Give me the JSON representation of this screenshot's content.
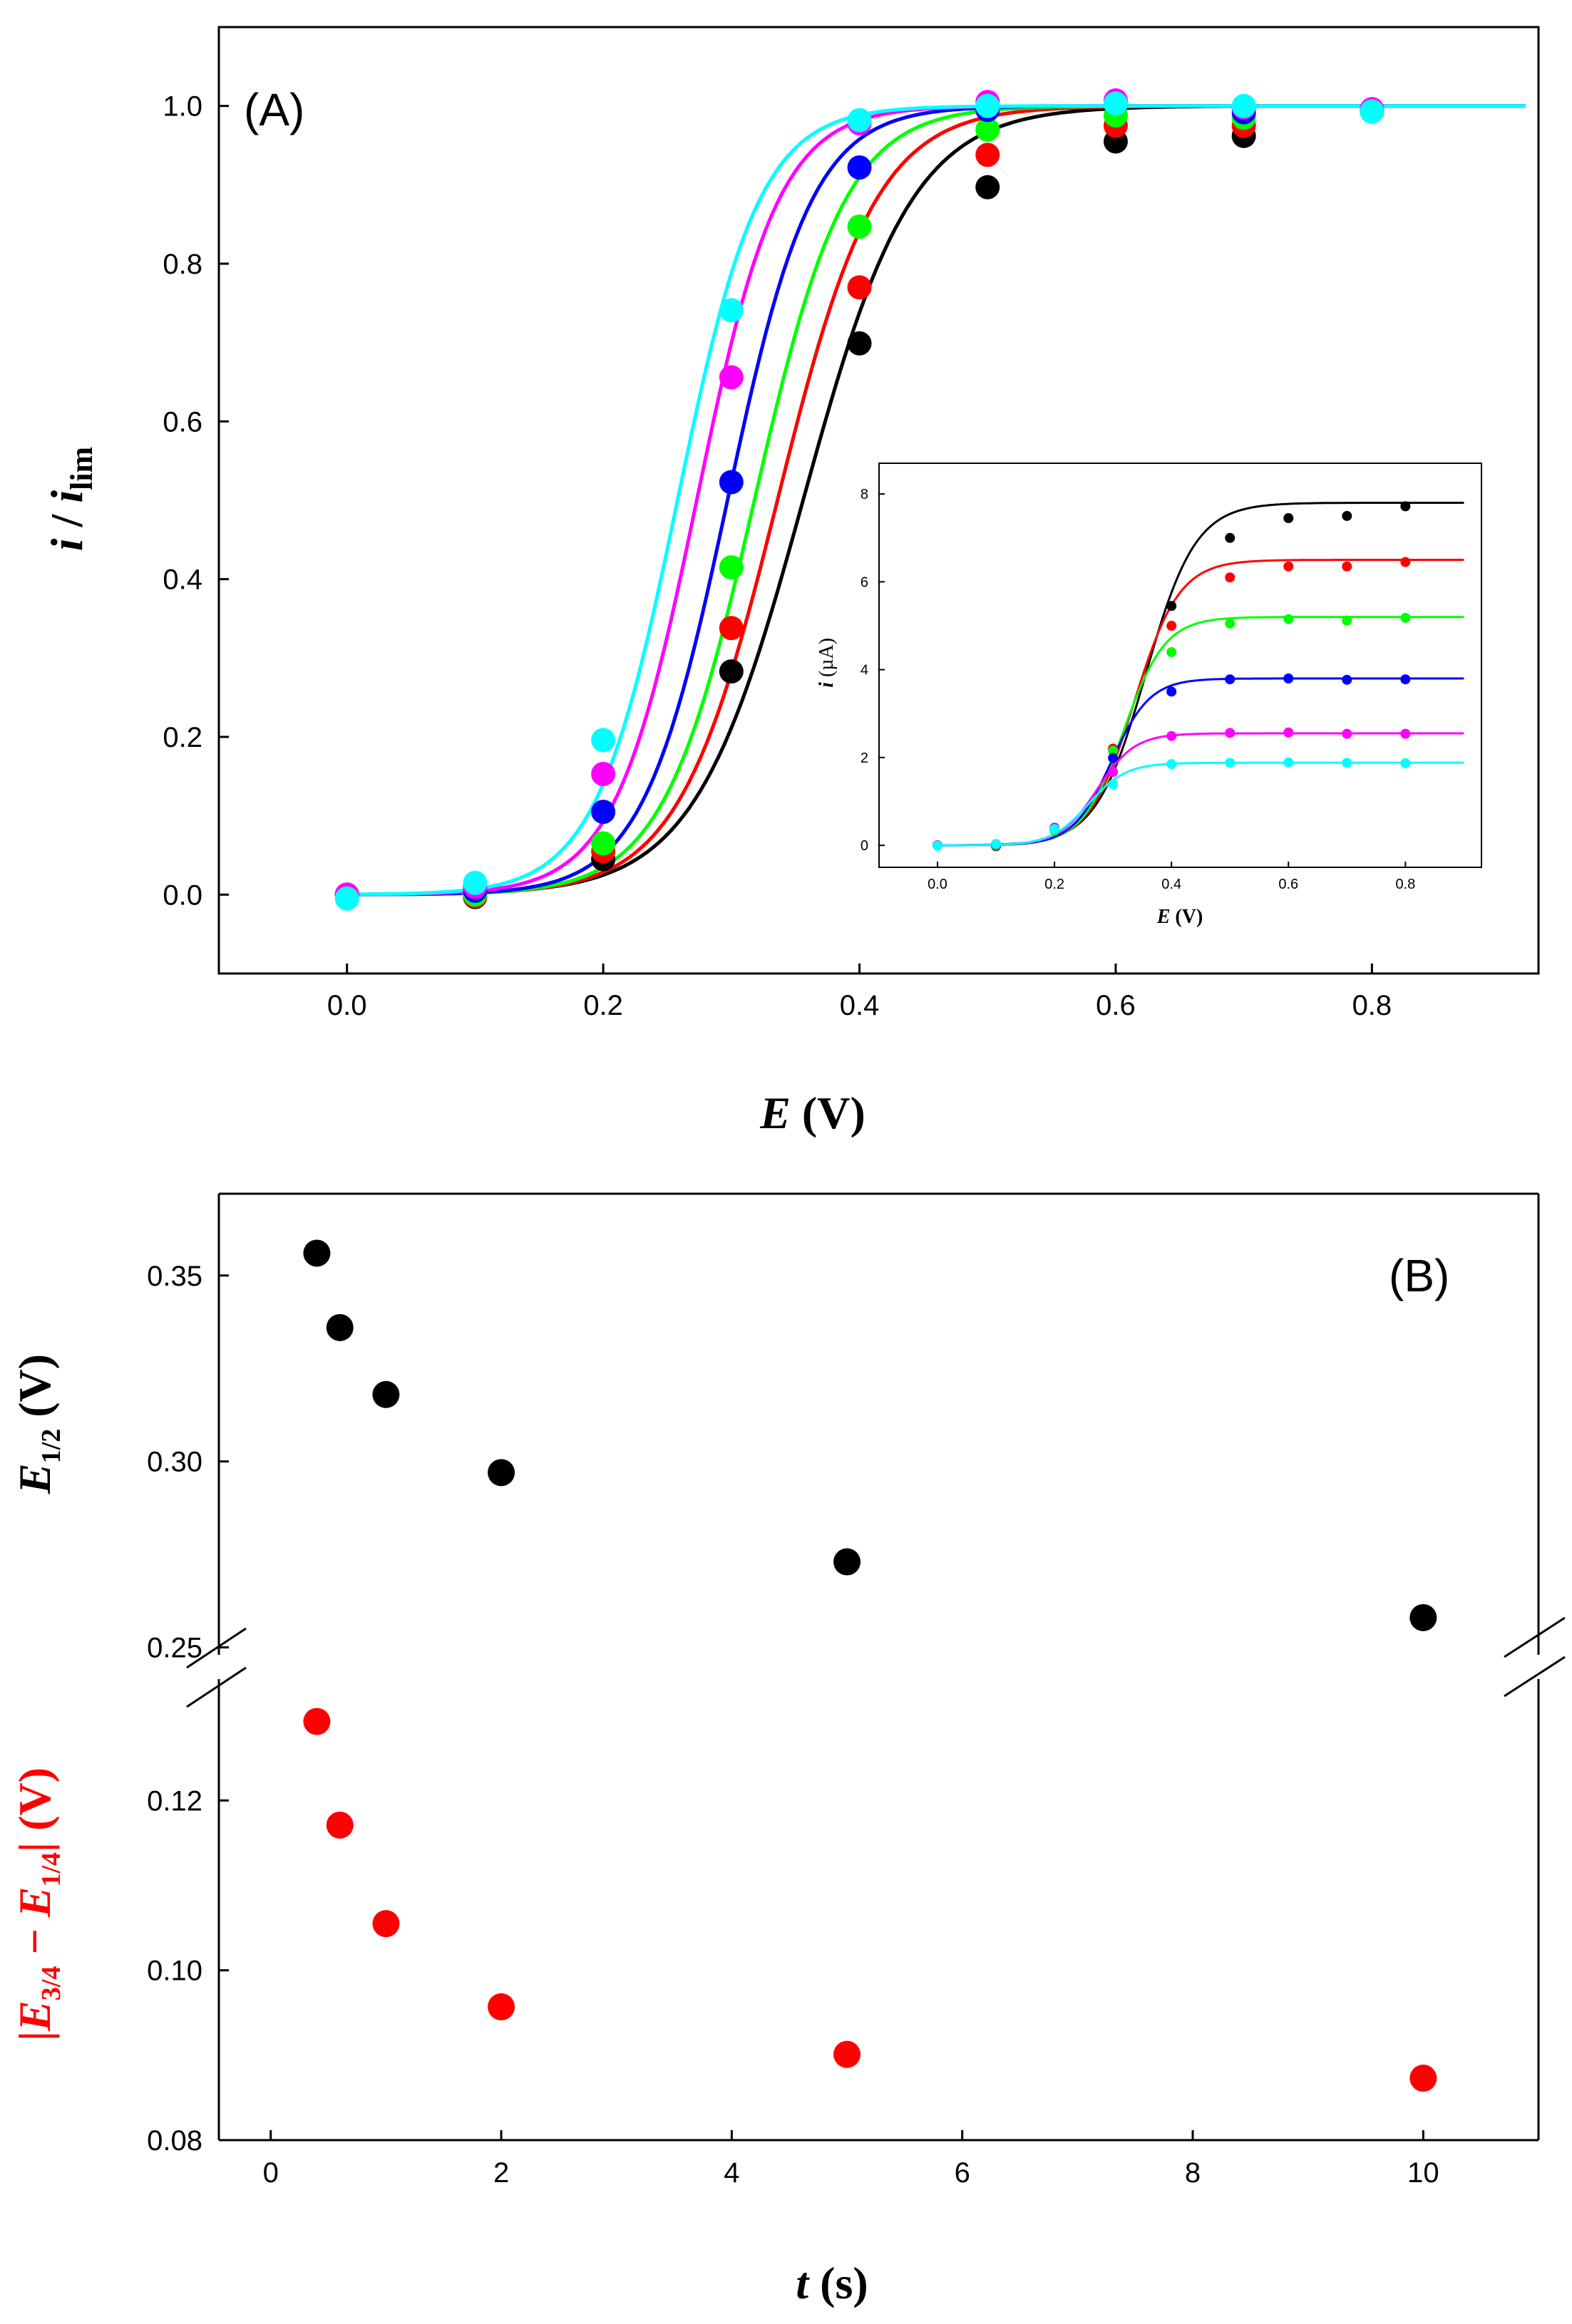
{
  "chart_data": [
    {
      "panel_label": "(A)",
      "type": "line+scatter",
      "xlabel": "E (V)",
      "xlabel_parts": {
        "sym": "E",
        "unit": " (V)"
      },
      "ylabel": "i / i_lim",
      "ylabel_parts": {
        "a": "i",
        "sep": " / ",
        "b": "i",
        "sub": "lim"
      },
      "xlim": [
        -0.1,
        0.93
      ],
      "ylim": [
        -0.1,
        1.1
      ],
      "xticks": [
        0.0,
        0.2,
        0.4,
        0.6,
        0.8
      ],
      "xtick_labels": [
        "0.0",
        "0.2",
        "0.4",
        "0.6",
        "0.8"
      ],
      "yticks": [
        0.0,
        0.2,
        0.4,
        0.6,
        0.8,
        1.0
      ],
      "ytick_labels": [
        "0.0",
        "0.2",
        "0.4",
        "0.6",
        "0.8",
        "1.0"
      ],
      "x": [
        0.0,
        0.1,
        0.2,
        0.3,
        0.4,
        0.5,
        0.6,
        0.7,
        0.8
      ],
      "series": [
        {
          "color": "#000000",
          "e_half": 0.356,
          "slope": 0.0425,
          "values": [
            0.0,
            -0.003,
            0.045,
            0.283,
            0.699,
            0.897,
            0.955,
            0.962,
            0.993
          ]
        },
        {
          "color": "#ff0000",
          "e_half": 0.336,
          "slope": 0.0385,
          "values": [
            0.0,
            -0.002,
            0.055,
            0.338,
            0.77,
            0.938,
            0.975,
            0.975,
            0.994
          ]
        },
        {
          "color": "#00ff00",
          "e_half": 0.318,
          "slope": 0.0355,
          "values": [
            0.0,
            0.0,
            0.065,
            0.415,
            0.847,
            0.97,
            0.988,
            0.985,
            0.995
          ]
        },
        {
          "color": "#0000ff",
          "e_half": 0.297,
          "slope": 0.033,
          "values": [
            0.0,
            0.005,
            0.105,
            0.523,
            0.922,
            0.995,
            1.003,
            0.992,
            0.994
          ]
        },
        {
          "color": "#ff00ff",
          "e_half": 0.273,
          "slope": 0.032,
          "values": [
            0.0,
            0.01,
            0.153,
            0.656,
            0.978,
            1.005,
            1.007,
            0.998,
            0.996
          ]
        },
        {
          "color": "#00ffff",
          "e_half": 0.258,
          "slope": 0.032,
          "values": [
            -0.005,
            0.015,
            0.196,
            0.741,
            0.982,
            1.0,
            1.003,
            1.0,
            0.993
          ]
        }
      ],
      "inset": {
        "type": "line+scatter",
        "xlabel": "E (V)",
        "xlabel_parts": {
          "sym": "E",
          "unit": " (V)"
        },
        "ylabel": "i (µA)",
        "ylabel_parts": {
          "sym": "i",
          "unit": " (µA)"
        },
        "xlim": [
          -0.1,
          0.93
        ],
        "ylim": [
          -0.5,
          8.7
        ],
        "xticks": [
          0.0,
          0.2,
          0.4,
          0.6,
          0.8
        ],
        "xtick_labels": [
          "0.0",
          "0.2",
          "0.4",
          "0.6",
          "0.8"
        ],
        "yticks": [
          0,
          2,
          4,
          6,
          8
        ],
        "ytick_labels": [
          "0",
          "2",
          "4",
          "6",
          "8"
        ],
        "x": [
          0.0,
          0.1,
          0.2,
          0.3,
          0.4,
          0.5,
          0.6,
          0.7,
          0.8
        ],
        "series": [
          {
            "color": "#000000",
            "i_lim": 7.8,
            "values": [
              0.0,
              -0.02,
              0.35,
              2.2,
              5.45,
              7.0,
              7.45,
              7.5,
              7.72
            ]
          },
          {
            "color": "#ff0000",
            "i_lim": 6.5,
            "values": [
              0.0,
              -0.01,
              0.36,
              2.2,
              5.0,
              6.1,
              6.35,
              6.35,
              6.45
            ]
          },
          {
            "color": "#00ff00",
            "i_lim": 5.2,
            "values": [
              0.0,
              0.0,
              0.34,
              2.15,
              4.4,
              5.05,
              5.15,
              5.12,
              5.18
            ]
          },
          {
            "color": "#0000ff",
            "i_lim": 3.8,
            "values": [
              0.0,
              0.02,
              0.4,
              1.99,
              3.5,
              3.78,
              3.8,
              3.77,
              3.78
            ]
          },
          {
            "color": "#ff00ff",
            "i_lim": 2.55,
            "values": [
              0.0,
              0.03,
              0.39,
              1.67,
              2.49,
              2.56,
              2.57,
              2.54,
              2.54
            ]
          },
          {
            "color": "#00ffff",
            "i_lim": 1.88,
            "values": [
              -0.01,
              0.03,
              0.37,
              1.39,
              1.85,
              1.88,
              1.89,
              1.88,
              1.87
            ]
          }
        ]
      }
    },
    {
      "panel_label": "(B)",
      "type": "scatter",
      "xlabel": "t (s)",
      "xlabel_parts": {
        "sym": "t",
        "unit": " (s)"
      },
      "xlim": [
        -0.45,
        11.0
      ],
      "xticks": [
        0,
        2,
        4,
        6,
        8,
        10
      ],
      "xtick_labels": [
        "0",
        "2",
        "4",
        "6",
        "8",
        "10"
      ],
      "x": [
        0.4,
        0.6,
        1.0,
        2.0,
        5.0,
        10.0
      ],
      "series": [
        {
          "name": "E1/2 (V)",
          "ylabel_parts": {
            "sym": "E",
            "sub": "1/2",
            "unit": " (V)"
          },
          "color": "#000000",
          "ylim": [
            0.248,
            0.372
          ],
          "yticks": [
            0.25,
            0.3,
            0.35
          ],
          "ytick_labels": [
            "0.25",
            "0.30",
            "0.35"
          ],
          "values": [
            0.356,
            0.336,
            0.318,
            0.297,
            0.273,
            0.258
          ]
        },
        {
          "name": "|E3/4 − E1/4| (V)",
          "ylabel_parts": {
            "bar": "|",
            "sym1": "E",
            "sub1": "3/4",
            "op": " − ",
            "sym2": "E",
            "sub2": "1/4",
            "unit": " (V)"
          },
          "color": "#ff0000",
          "ylim": [
            0.08,
            0.1343
          ],
          "yticks": [
            0.08,
            0.1,
            0.12
          ],
          "ytick_labels": [
            "0.08",
            "0.10",
            "0.12"
          ],
          "values": [
            0.1293,
            0.1171,
            0.1055,
            0.0957,
            0.0901,
            0.0873
          ]
        }
      ]
    }
  ]
}
